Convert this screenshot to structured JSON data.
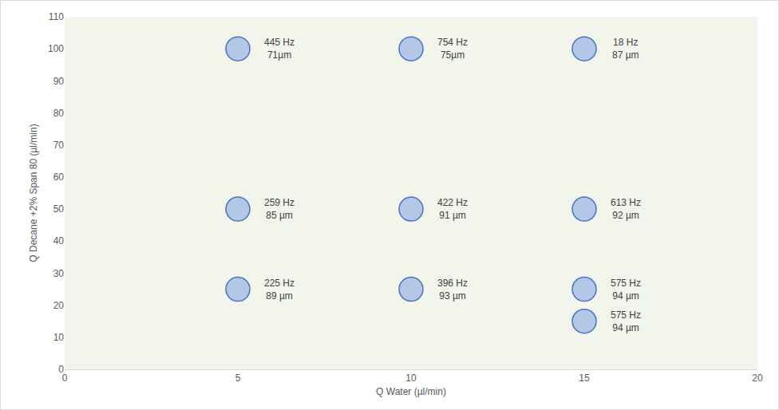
{
  "chart_data": {
    "type": "scatter",
    "x_label": "Q Water (µl/min)",
    "y_label": "Q Decane +2% Span 80 (µl/min)",
    "x": [
      5,
      10,
      15,
      5,
      10,
      15,
      5,
      10,
      15,
      15
    ],
    "y": [
      100,
      100,
      100,
      50,
      50,
      50,
      25,
      25,
      25,
      15
    ],
    "annotations": [
      [
        "445 Hz",
        "71µm"
      ],
      [
        "754 Hz",
        "75µm"
      ],
      [
        "18 Hz",
        "87 µm"
      ],
      [
        "259 Hz",
        "85 µm"
      ],
      [
        "422 Hz",
        "91 µm"
      ],
      [
        "613 Hz",
        "92 µm"
      ],
      [
        "225 Hz",
        "89 µm"
      ],
      [
        "396 Hz",
        "93 µm"
      ],
      [
        "575 Hz",
        "94 µm"
      ],
      [
        "575 Hz",
        "94 µm"
      ]
    ],
    "xlim": [
      0,
      20
    ],
    "xticks": [
      0,
      5,
      10,
      15,
      20
    ],
    "ylim": [
      0,
      110
    ],
    "yticks": [
      0,
      10,
      20,
      30,
      40,
      50,
      60,
      70,
      80,
      90,
      100,
      110
    ],
    "grid": false,
    "color": "#b4c7e7",
    "marker": "circle"
  }
}
